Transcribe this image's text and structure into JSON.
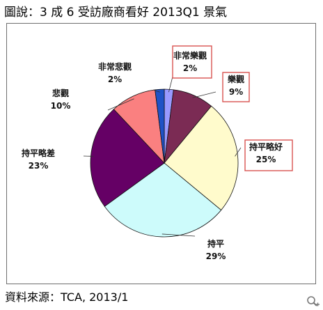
{
  "caption": "圖說：3 成 6 受訪廠商看好 2013Q1 景氣",
  "source": "資料來源：TCA, 2013/1",
  "icons": {
    "zoom": "zoom-in-icon"
  },
  "chart_data": {
    "type": "pie",
    "start": "12 o'clock, clockwise",
    "legend": "none (category labels beside slices)",
    "slices": [
      {
        "label": "非常樂觀",
        "value": 2,
        "display": "2%",
        "color": "#9999ff",
        "highlighted": true
      },
      {
        "label": "樂觀",
        "value": 9,
        "display": "9%",
        "color": "#7b2b54",
        "highlighted": true
      },
      {
        "label": "持平略好",
        "value": 25,
        "display": "25%",
        "color": "#fffbcc",
        "highlighted": true
      },
      {
        "label": "持平",
        "value": 29,
        "display": "29%",
        "color": "#cdfbfb",
        "highlighted": false
      },
      {
        "label": "持平略差",
        "value": 23,
        "display": "23%",
        "color": "#650065",
        "highlighted": false
      },
      {
        "label": "悲觀",
        "value": 10,
        "display": "10%",
        "color": "#fa8080",
        "highlighted": false
      },
      {
        "label": "非常悲觀",
        "value": 2,
        "display": "2%",
        "color": "#1f52c6",
        "highlighted": false
      }
    ],
    "highlight_box_color": "#d9534f"
  }
}
